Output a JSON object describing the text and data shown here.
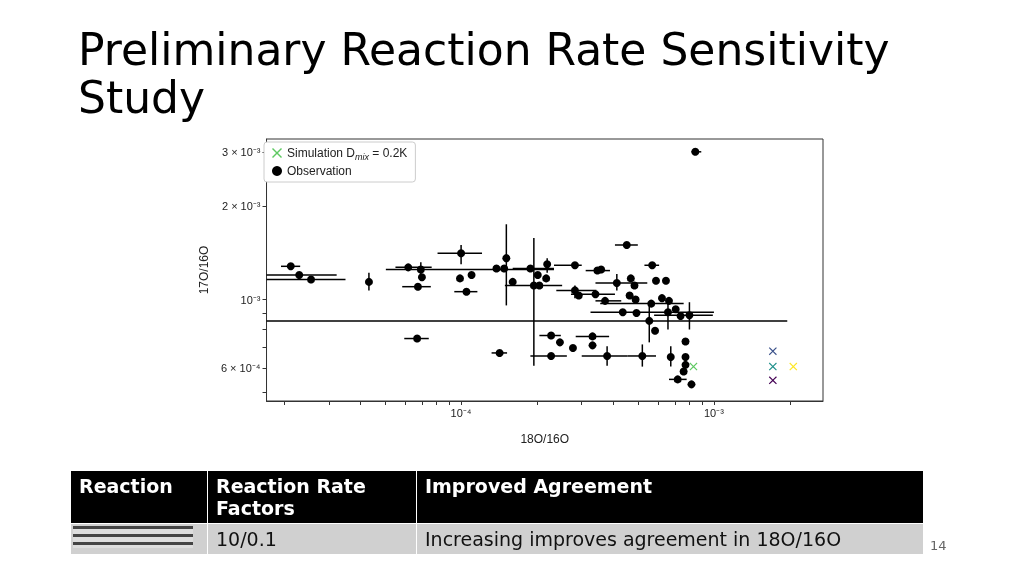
{
  "chart_data": {
    "type": "scatter",
    "title": "Preliminary Reaction Rate Sensitivity Study",
    "xlabel": "18O/16O",
    "ylabel": "17O/16O",
    "annotations": [
      "Reaction",
      "Reaction Rate Factors",
      "Improved Agreement",
      "10/0.1",
      "Increasing improves agreement in 18O/16O",
      "14"
    ],
    "log": "xy",
    "grid": false,
    "legend": "top left",
    "xlim": [
      1.7e-05,
      0.0027
    ],
    "ylim": [
      0.00047,
      0.0033
    ],
    "xticks": [
      {
        "value": 2e-05,
        "label": null
      },
      {
        "value": 3e-05,
        "label": null
      },
      {
        "value": 4e-05,
        "label": null
      },
      {
        "value": 5e-05,
        "label": null
      },
      {
        "value": 6e-05,
        "label": null
      },
      {
        "value": 7e-05,
        "label": null
      },
      {
        "value": 8e-05,
        "label": null
      },
      {
        "value": 9e-05,
        "label": null
      },
      {
        "value": 0.0001,
        "label": "10⁻⁴"
      },
      {
        "value": 0.0002,
        "label": null
      },
      {
        "value": 0.0003,
        "label": null
      },
      {
        "value": 0.0004,
        "label": null
      },
      {
        "value": 0.0005,
        "label": null
      },
      {
        "value": 0.0006,
        "label": null
      },
      {
        "value": 0.0007,
        "label": null
      },
      {
        "value": 0.0008,
        "label": null
      },
      {
        "value": 0.0009,
        "label": null
      },
      {
        "value": 0.001,
        "label": "10⁻³"
      },
      {
        "value": 0.002,
        "label": null
      }
    ],
    "yticks": [
      {
        "value": 0.0005,
        "label": null
      },
      {
        "value": 0.0006,
        "label": "6 × 10⁻⁴"
      },
      {
        "value": 0.0007,
        "label": null
      },
      {
        "value": 0.0008,
        "label": null
      },
      {
        "value": 0.0009,
        "label": null
      },
      {
        "value": 0.001,
        "label": "10⁻³"
      },
      {
        "value": 0.002,
        "label": "2 × 10⁻³"
      },
      {
        "value": 0.003,
        "label": "3 × 10⁻³"
      }
    ],
    "series": [
      {
        "name": "Simulation D$_{mix}$ = 0.2K",
        "marker": "cross",
        "colors": [
          "#5ec962",
          "#3b528b",
          "#21918c",
          "#440154",
          "#fde725"
        ],
        "x": [
          0.00083,
          0.00171,
          0.00171,
          0.00171,
          0.00206
        ],
        "values": [
          0.000607,
          0.000681,
          0.000607,
          0.000548,
          0.000607
        ]
      },
      {
        "name": "Observation",
        "color": "#000000",
        "marker": "circle",
        "x": [
          2.12e-05,
          2.29e-05,
          2.55e-05,
          4.32e-05,
          6.18e-05,
          6.93e-05,
          7e-05,
          6.75e-05,
          6.7e-05,
          0.0001,
          9.9e-05,
          0.00011,
          0.000105,
          0.000142,
          0.000138,
          0.000148,
          0.000151,
          0.00016,
          0.000188,
          0.000201,
          0.000219,
          0.000217,
          0.000194,
          0.000204,
          0.000282,
          0.000227,
          0.000246,
          0.000277,
          0.000227,
          0.000331,
          0.000331,
          0.000378,
          0.000521,
          0.000346,
          0.000358,
          0.000282,
          0.000292,
          0.00034,
          0.000371,
          0.000413,
          0.000469,
          0.000485,
          0.000464,
          0.00049,
          0.000452,
          0.00057,
          0.00059,
          0.000646,
          0.000565,
          0.000623,
          0.000664,
          0.000706,
          0.000738,
          0.0008,
          0.000658,
          0.000436,
          0.000494,
          0.000555,
          0.000585,
          0.000772,
          0.000675,
          0.000772,
          0.000772,
          0.000759,
          0.000719,
          0.000815,
          0.000844
        ],
        "values": [
          0.00128,
          0.0012,
          0.00116,
          0.00114,
          0.00127,
          0.00125,
          0.00118,
          0.0011,
          0.000748,
          0.00141,
          0.00117,
          0.0012,
          0.00106,
          0.000672,
          0.00126,
          0.00126,
          0.00136,
          0.00114,
          0.00126,
          0.0012,
          0.0013,
          0.00117,
          0.00111,
          0.00111,
          0.00129,
          0.000765,
          0.000727,
          0.000697,
          0.000657,
          0.00076,
          0.000711,
          0.000657,
          0.000657,
          0.00124,
          0.00125,
          0.00107,
          0.00103,
          0.00104,
          0.00099,
          0.00113,
          0.00117,
          0.00111,
          0.00103,
          0.001,
          0.0015,
          0.00129,
          0.00115,
          0.00115,
          0.00097,
          0.00101,
          0.00099,
          0.00093,
          0.000885,
          0.00089,
          0.00091,
          0.00091,
          0.000904,
          0.000853,
          0.000793,
          0.000732,
          0.000652,
          0.000652,
          0.000615,
          0.000585,
          0.000552,
          0.000532,
          0.003
        ],
        "xerrors": [
          [
            1.94e-05,
            2.31e-05
          ],
          [
            1.7e-05,
            3.22e-05
          ],
          [
            1.7e-05,
            3.49e-05
          ],
          null,
          [
            5.5e-05,
            7.65e-05
          ],
          [
            5.04e-05,
            0.000233
          ],
          null,
          [
            5.85e-05,
            7.59e-05
          ],
          [
            5.96e-05,
            7.45e-05
          ],
          [
            8.07e-05,
            0.000121
          ],
          null,
          null,
          [
            9.4e-05,
            0.000116
          ],
          [
            0.000132,
            0.000152
          ],
          null,
          null,
          null,
          null,
          [
            0.00016,
            0.000233
          ],
          null,
          null,
          null,
          [
            0.000149,
            0.000251
          ],
          null,
          [
            0.000233,
            0.0003
          ],
          [
            0.000204,
            0.000248
          ],
          null,
          null,
          [
            0.000188,
            0.000262
          ],
          [
            0.000284,
            0.000385
          ],
          null,
          [
            0.0003,
            0.000456
          ],
          [
            0.000456,
            0.00059
          ],
          [
            0.000311,
            0.000388
          ],
          null,
          [
            0.000238,
            0.000343
          ],
          null,
          [
            0.000272,
            0.000406
          ],
          [
            0.00034,
            0.00043
          ],
          [
            0.00034,
            0.000545
          ],
          null,
          null,
          null,
          null,
          [
            0.000406,
            0.0005
          ],
          [
            0.000531,
            0.000607
          ],
          null,
          null,
          [
            0.000355,
            0.000759
          ],
          null,
          null,
          null,
          null,
          [
            0.00058,
            0.00099
          ],
          [
            0.000325,
            0.001
          ],
          null,
          null,
          [
            1.7e-05,
            0.00195
          ],
          null,
          null,
          null,
          null,
          null,
          null,
          [
            0.000664,
            0.00078
          ],
          null,
          [
            0.000815,
            0.000891
          ]
        ],
        "errors": [
          null,
          null,
          null,
          [
            0.00107,
            0.00122
          ],
          null,
          [
            0.00119,
            0.00132
          ],
          null,
          null,
          null,
          [
            0.0013,
            0.0015
          ],
          null,
          null,
          null,
          null,
          null,
          null,
          [
            0.000957,
            0.00175
          ],
          null,
          null,
          null,
          [
            0.00122,
            0.00136
          ],
          null,
          [
            0.000611,
            0.00158
          ],
          null,
          null,
          null,
          null,
          null,
          null,
          null,
          null,
          [
            0.000611,
            0.000706
          ],
          [
            0.000607,
            0.000716
          ],
          null,
          null,
          [
            0.00101,
            0.00111
          ],
          null,
          null,
          null,
          [
            0.00107,
            0.00121
          ],
          null,
          null,
          null,
          null,
          null,
          null,
          null,
          null,
          null,
          null,
          null,
          null,
          null,
          [
            0.0008,
            0.00098
          ],
          [
            0.0008,
            0.00098
          ],
          null,
          null,
          [
            0.000727,
            0.00097
          ],
          null,
          null,
          [
            0.000607,
            0.000706
          ],
          null,
          null,
          null,
          null,
          null,
          null
        ]
      }
    ]
  }
}
